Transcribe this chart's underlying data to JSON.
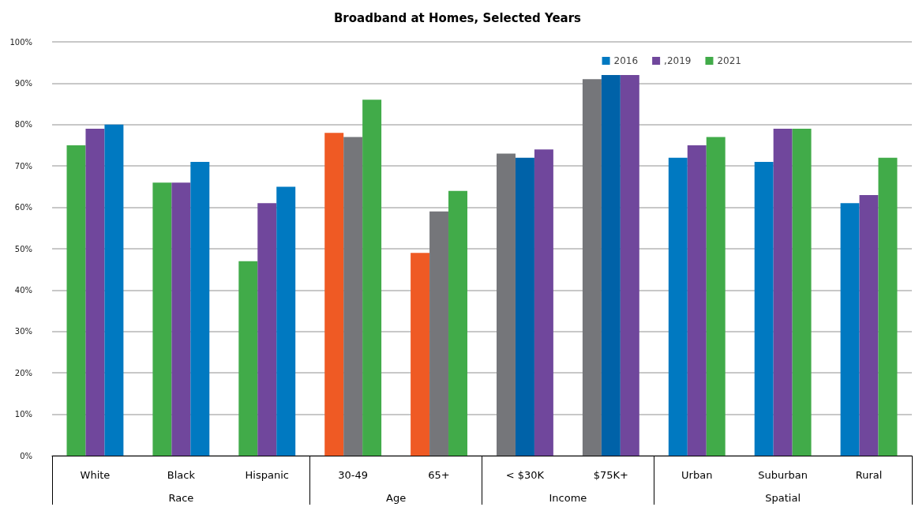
{
  "chart_data": {
    "type": "bar",
    "title": "Broadband at Homes, Selected Years",
    "categories": [
      "White",
      "Black",
      "Hispanic",
      "30-49",
      "65+",
      "< $30K",
      "$75K+",
      "Urban",
      "Suburban",
      "Rural"
    ],
    "series": [
      {
        "name": "2016",
        "color": "#0079c1",
        "values": [
          75,
          66,
          47,
          78,
          49,
          73,
          91,
          72,
          71,
          61
        ],
        "colors": [
          "#41ab49",
          "#41ab49",
          "#41ab49",
          "#ef5a24",
          "#ef5a24",
          "#75767a",
          "#75767a",
          "#0079c1",
          "#0079c1",
          "#0079c1"
        ]
      },
      {
        "name": ",2019",
        "color": "#70479c",
        "values": [
          79,
          66,
          61,
          77,
          59,
          72,
          92,
          75,
          79,
          63
        ],
        "colors": [
          "#70479c",
          "#70479c",
          "#70479c",
          "#75767a",
          "#75767a",
          "#0062a8",
          "#0062a8",
          "#70479c",
          "#70479c",
          "#70479c"
        ]
      },
      {
        "name": "2021",
        "color": "#41ab49",
        "values": [
          80,
          71,
          65,
          86,
          64,
          74,
          92,
          77,
          79,
          72
        ],
        "colors": [
          "#0079c1",
          "#0079c1",
          "#0079c1",
          "#41ab49",
          "#41ab49",
          "#70479c",
          "#70479c",
          "#41ab49",
          "#41ab49",
          "#41ab49"
        ]
      }
    ],
    "ylim": [
      0,
      100
    ],
    "yticks": [
      {
        "value": 0,
        "label": "0%"
      },
      {
        "value": 10,
        "label": "10%"
      },
      {
        "value": 20,
        "label": "20%"
      },
      {
        "value": 30,
        "label": "30%"
      },
      {
        "value": 40,
        "label": "40%"
      },
      {
        "value": 50,
        "label": "50%"
      },
      {
        "value": 60,
        "label": "60%"
      },
      {
        "value": 70,
        "label": "70%"
      },
      {
        "value": 80,
        "label": "80%"
      },
      {
        "value": 90,
        "label": "90%"
      },
      {
        "value": 100,
        "label": "100%"
      }
    ],
    "grid": "y",
    "legend": "top right",
    "annotations": [
      "Race",
      "Age",
      "Income",
      "Spatial"
    ]
  }
}
